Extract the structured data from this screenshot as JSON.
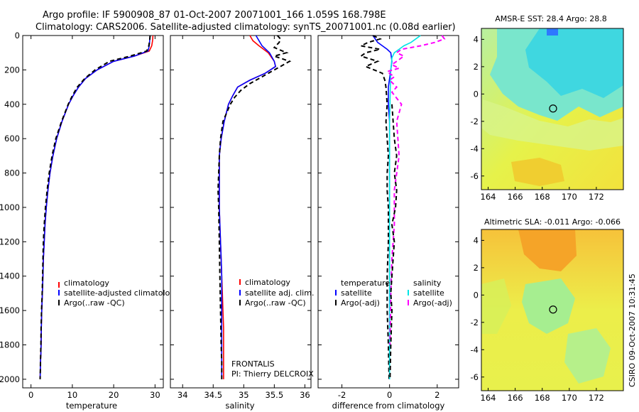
{
  "header": {
    "line1": "Argo profile: IF 5900908_87 01-Oct-2007 20071001_166 1.059S 168.798E",
    "line2": "Climatology: CARS2006. Satellite-adjusted climatology: synTS_20071001.nc (0.08d earlier)"
  },
  "colors": {
    "climatology": "#ff0000",
    "satellite": "#0000ff",
    "argo": "#000000",
    "salinity_satellite": "#00e5e5",
    "salinity_argo": "#ff00ff"
  },
  "chart_data": [
    {
      "type": "line",
      "xlabel": "temperature",
      "xticks": [
        "0",
        "10",
        "20",
        "30"
      ],
      "xlim": [
        -2,
        32
      ],
      "yticks": [
        "0",
        "200",
        "400",
        "600",
        "800",
        "1000",
        "1200",
        "1400",
        "1600",
        "1800",
        "2000"
      ],
      "ylim": [
        0,
        2050
      ],
      "y_reversed": true,
      "legend": {
        "placement": "lower-right",
        "labels": [
          "climatology",
          "satellite-adjusted climatology",
          "Argo(..raw -QC)"
        ]
      },
      "series": [
        {
          "name": "climatology",
          "color": "#ff0000",
          "dash": "solid",
          "x": [
            29.5,
            29.4,
            29.2,
            28.6,
            25,
            20,
            16,
            13.2,
            11.5,
            10.2,
            9.1,
            7.5,
            6.2,
            5.3,
            4.6,
            4.1,
            3.7,
            3.4,
            3.2,
            3.0,
            2.9,
            2.75,
            2.6,
            2.5,
            2.45,
            2.4,
            2.3,
            2.25,
            2.2
          ],
          "y": [
            0,
            30,
            60,
            90,
            120,
            150,
            200,
            250,
            300,
            350,
            400,
            500,
            600,
            700,
            800,
            900,
            1000,
            1100,
            1200,
            1300,
            1400,
            1500,
            1600,
            1700,
            1800,
            1850,
            1900,
            1950,
            2000
          ]
        },
        {
          "name": "satellite-adjusted climatology",
          "color": "#0000ff",
          "dash": "solid",
          "x": [
            28.8,
            28.7,
            28.6,
            28.3,
            25,
            20,
            16,
            13.2,
            11.5,
            10.2,
            9.1,
            7.5,
            6.2,
            5.3,
            4.6,
            4.1,
            3.7,
            3.4,
            3.2,
            3.0,
            2.9,
            2.75,
            2.6,
            2.5,
            2.45,
            2.4,
            2.3,
            2.25,
            2.2
          ],
          "y": [
            0,
            30,
            60,
            90,
            120,
            150,
            200,
            250,
            300,
            350,
            400,
            500,
            600,
            700,
            800,
            900,
            1000,
            1100,
            1200,
            1300,
            1400,
            1500,
            1600,
            1700,
            1800,
            1850,
            1900,
            1950,
            2000
          ]
        },
        {
          "name": "Argo(..raw -QC)",
          "color": "#000000",
          "dash": "dashed",
          "x": [
            28.8,
            28.7,
            28.5,
            28,
            24,
            19,
            15.5,
            13,
            11.2,
            10,
            9,
            7.4,
            6,
            5.1,
            4.4,
            3.9,
            3.5,
            3.2,
            3.0,
            2.9,
            2.8,
            2.7,
            2.55,
            2.45,
            2.4,
            2.35,
            2.3,
            2.25,
            2.2
          ],
          "y": [
            0,
            30,
            60,
            90,
            120,
            150,
            200,
            250,
            300,
            350,
            400,
            500,
            600,
            700,
            800,
            900,
            1000,
            1100,
            1200,
            1300,
            1400,
            1500,
            1600,
            1700,
            1800,
            1850,
            1900,
            1950,
            2000
          ]
        }
      ]
    },
    {
      "type": "line",
      "xlabel": "salinity",
      "xticks": [
        "34",
        "34.5",
        "35",
        "35.5",
        "36"
      ],
      "xlim": [
        33.8,
        36.1
      ],
      "yticks": [],
      "ylim": [
        0,
        2050
      ],
      "y_reversed": true,
      "legend": {
        "placement": "lower-right",
        "labels": [
          "climatology",
          "satellite adj. clim.",
          "Argo(..raw -QC)"
        ]
      },
      "annotation": [
        "FRONTALIS",
        "PI: Thierry DELCROIX"
      ],
      "series": [
        {
          "name": "climatology",
          "color": "#ff0000",
          "dash": "solid",
          "x": [
            35.1,
            35.15,
            35.25,
            35.4,
            35.5,
            35.52,
            35.35,
            35.1,
            34.9,
            34.82,
            34.75,
            34.68,
            34.63,
            34.6,
            34.6,
            34.6,
            34.6,
            34.61,
            34.62,
            34.63,
            34.64,
            34.65,
            34.66,
            34.67,
            34.67,
            34.67,
            34.67,
            34.67,
            34.67
          ],
          "y": [
            0,
            30,
            60,
            100,
            150,
            180,
            220,
            260,
            300,
            350,
            400,
            500,
            600,
            700,
            800,
            900,
            1000,
            1100,
            1200,
            1300,
            1400,
            1500,
            1600,
            1700,
            1800,
            1850,
            1900,
            1950,
            2000
          ]
        },
        {
          "name": "satellite adj. clim.",
          "color": "#0000ff",
          "dash": "solid",
          "x": [
            35.2,
            35.25,
            35.3,
            35.42,
            35.5,
            35.52,
            35.35,
            35.1,
            34.9,
            34.82,
            34.75,
            34.68,
            34.63,
            34.6,
            34.6,
            34.6,
            34.6,
            34.61,
            34.62,
            34.63,
            34.64,
            34.64,
            34.64,
            34.64,
            34.64,
            34.64,
            34.64,
            34.64,
            34.64
          ],
          "y": [
            0,
            30,
            60,
            100,
            150,
            180,
            220,
            260,
            300,
            350,
            400,
            500,
            600,
            700,
            800,
            900,
            1000,
            1100,
            1200,
            1300,
            1400,
            1500,
            1600,
            1700,
            1800,
            1850,
            1900,
            1950,
            2000
          ]
        },
        {
          "name": "Argo(..raw -QC)",
          "color": "#000000",
          "dash": "dashed",
          "x": [
            35.55,
            35.6,
            35.58,
            35.5,
            35.7,
            35.5,
            35.75,
            35.6,
            35.45,
            35.3,
            35.1,
            34.95,
            34.85,
            34.78,
            34.72,
            34.66,
            34.62,
            34.6,
            34.59,
            34.58,
            34.59,
            34.6,
            34.61,
            34.62,
            34.63,
            34.64,
            34.64,
            34.64
          ],
          "y": [
            0,
            20,
            40,
            70,
            100,
            120,
            150,
            180,
            210,
            240,
            280,
            320,
            360,
            400,
            450,
            500,
            600,
            700,
            800,
            900,
            1000,
            1200,
            1400,
            1600,
            1800,
            1900,
            1950,
            2000
          ]
        }
      ]
    },
    {
      "type": "line",
      "xlabel": "difference from climatology",
      "xticks": [
        "-2",
        "0",
        "2"
      ],
      "xlim": [
        -3,
        2.9
      ],
      "yticks": [],
      "ylim": [
        0,
        2050
      ],
      "y_reversed": true,
      "legend": {
        "placement": "lower-right",
        "columns": [
          {
            "heading": "temperature",
            "labels": [
              "satellite",
              "Argo(-adj)"
            ]
          },
          {
            "heading": "salinity",
            "labels": [
              "satellite",
              "Argo(-adj)"
            ]
          }
        ]
      },
      "series": [
        {
          "name": "temperature satellite",
          "color": "#0000ff",
          "dash": "solid",
          "x": [
            -0.7,
            -0.6,
            -0.5,
            -0.3,
            -0.1,
            0.05,
            0.1,
            0.05,
            0,
            -0.05,
            -0.05,
            0,
            0,
            0,
            0,
            0,
            0,
            0,
            0,
            0
          ],
          "y": [
            0,
            20,
            40,
            60,
            80,
            100,
            150,
            200,
            250,
            300,
            400,
            500,
            700,
            900,
            1100,
            1300,
            1500,
            1700,
            1900,
            2000
          ]
        },
        {
          "name": "temperature Argo(-adj)",
          "color": "#000000",
          "dash": "dashed",
          "x": [
            -0.7,
            -0.4,
            -0.9,
            -1.2,
            -0.4,
            -1.0,
            -1.2,
            -0.5,
            -1.0,
            -0.3,
            -0.2,
            -0.15,
            -0.1,
            -0.15,
            -0.1,
            -0.05,
            -0.1,
            -0.1,
            -0.05,
            -0.05,
            -0.1,
            -0.1,
            -0.05,
            -0.02
          ],
          "y": [
            0,
            20,
            40,
            60,
            80,
            100,
            120,
            150,
            180,
            220,
            260,
            300,
            400,
            500,
            600,
            700,
            800,
            900,
            1000,
            1200,
            1400,
            1600,
            1800,
            2000
          ]
        },
        {
          "name": "salinity satellite",
          "color": "#00e5e5",
          "dash": "solid",
          "x": [
            1.3,
            1.1,
            0.9,
            0.6,
            0.4,
            0.2,
            0.1,
            0.08,
            0.05,
            0.03,
            0.02,
            0,
            0,
            0,
            0,
            0,
            0,
            0,
            0,
            0
          ],
          "y": [
            0,
            20,
            40,
            60,
            80,
            100,
            130,
            160,
            200,
            300,
            400,
            500,
            700,
            900,
            1100,
            1300,
            1500,
            1700,
            1900,
            2000
          ]
        },
        {
          "name": "salinity Argo(-adj)",
          "color": "#ff00ff",
          "dash": "dashed",
          "x": [
            2.2,
            2.3,
            1.9,
            1.3,
            0.5,
            0.3,
            0.6,
            0.3,
            0.1,
            0.4,
            -0.1,
            0.2,
            0.0,
            0.3,
            0.1,
            0.5,
            0.3,
            0.4,
            0.2,
            0.2,
            0.1,
            0.05,
            0.02
          ],
          "y": [
            0,
            20,
            40,
            60,
            80,
            100,
            120,
            150,
            170,
            190,
            210,
            240,
            260,
            300,
            330,
            400,
            500,
            700,
            900,
            1100,
            1300,
            1500,
            1800
          ]
        },
        {
          "name": "salinity Argo(-adj) deep",
          "color": "#000000",
          "dash": "dashed",
          "x": [
            0.1,
            0.2,
            0.3,
            0.2,
            0.3,
            0.25,
            0.1,
            0.2,
            0.15,
            0.1,
            0.05,
            0.1,
            0.05,
            0.02
          ],
          "y": [
            400,
            600,
            700,
            800,
            900,
            1000,
            1100,
            1200,
            1300,
            1400,
            1500,
            1600,
            1800,
            2000
          ]
        }
      ]
    },
    {
      "type": "heatmap",
      "title": "AMSR-E SST: 28.4 Argo: 28.8",
      "xticks": [
        "164",
        "166",
        "168",
        "170",
        "172"
      ],
      "yticks": [
        "4",
        "2",
        "0",
        "-2",
        "-4",
        "-6"
      ],
      "xlim": [
        163.5,
        174
      ],
      "ylim": [
        -7,
        4.8
      ],
      "marker": {
        "lon": 168.8,
        "lat": -1.06
      }
    },
    {
      "type": "heatmap",
      "title": "Altimetric SLA: -0.011 Argo: -0.066",
      "xticks": [
        "164",
        "166",
        "168",
        "170",
        "172"
      ],
      "yticks": [
        "4",
        "2",
        "0",
        "-2",
        "-4",
        "-6"
      ],
      "xlim": [
        163.5,
        174
      ],
      "ylim": [
        -7,
        4.8
      ],
      "marker": {
        "lon": 168.8,
        "lat": -1.06
      }
    }
  ],
  "footer": {
    "stamp": "CSIRO 09-Oct-2007 10:31:45"
  }
}
